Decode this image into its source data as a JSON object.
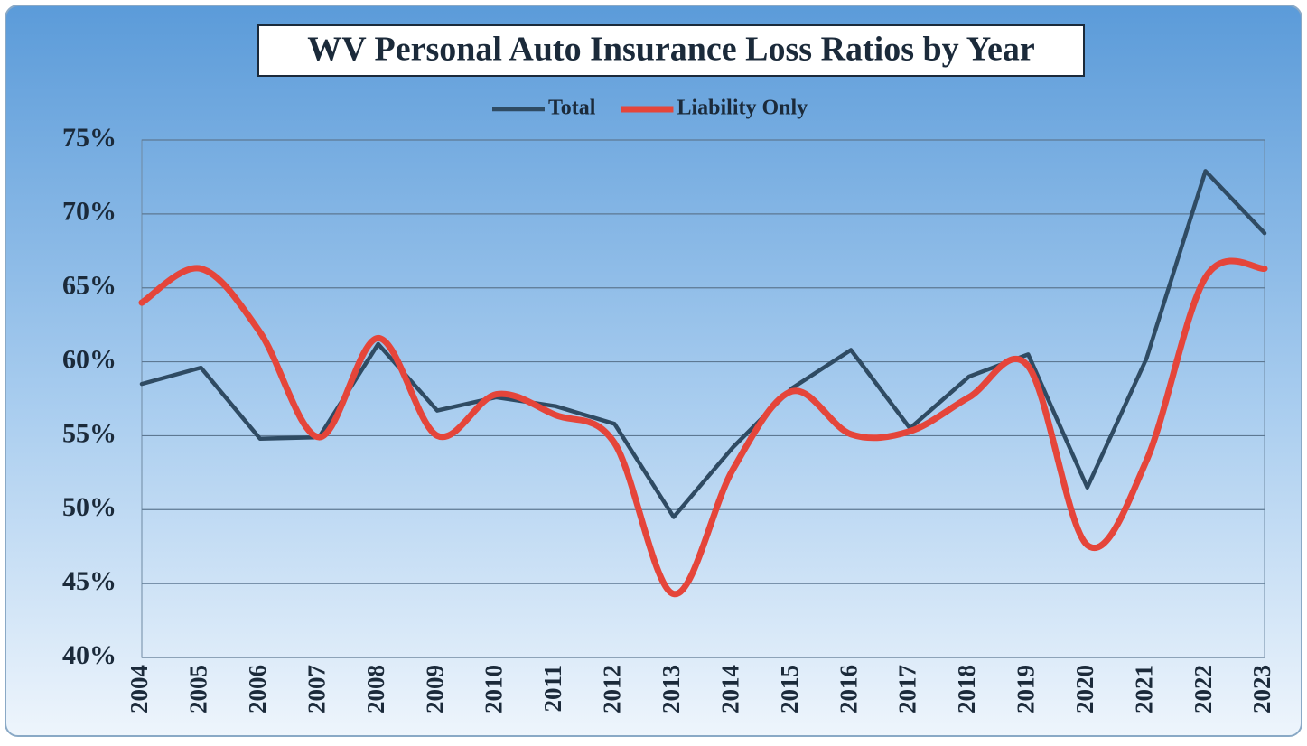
{
  "chart_data": {
    "type": "line",
    "title": "WV Personal Auto Insurance Loss Ratios by Year",
    "categories": [
      "2004",
      "2005",
      "2006",
      "2007",
      "2008",
      "2009",
      "2010",
      "2011",
      "2012",
      "2013",
      "2014",
      "2015",
      "2016",
      "2017",
      "2018",
      "2019",
      "2020",
      "2021",
      "2022",
      "2023"
    ],
    "series": [
      {
        "name": "Total",
        "color": "#2f4b63",
        "smooth": false,
        "values": [
          58.5,
          59.6,
          54.8,
          54.9,
          61.2,
          56.7,
          57.6,
          57.0,
          55.8,
          49.5,
          54.2,
          58.2,
          60.8,
          55.5,
          59.0,
          60.5,
          51.5,
          60.2,
          72.9,
          68.7
        ]
      },
      {
        "name": "Liability Only",
        "color": "#e5453a",
        "smooth": true,
        "values": [
          64.0,
          66.3,
          62.0,
          54.9,
          61.6,
          55.0,
          57.8,
          56.4,
          54.5,
          44.3,
          52.7,
          58.0,
          55.1,
          55.3,
          57.6,
          59.7,
          47.6,
          53.3,
          65.7,
          66.3
        ]
      }
    ],
    "ylim": [
      40,
      75
    ],
    "yticks": [
      {
        "value": 40,
        "label": "40%"
      },
      {
        "value": 45,
        "label": "45%"
      },
      {
        "value": 50,
        "label": "50%"
      },
      {
        "value": 55,
        "label": "55%"
      },
      {
        "value": 60,
        "label": "60%"
      },
      {
        "value": 65,
        "label": "65%"
      },
      {
        "value": 70,
        "label": "70%"
      },
      {
        "value": 75,
        "label": "75%"
      }
    ],
    "grid": true,
    "legend": "top"
  }
}
